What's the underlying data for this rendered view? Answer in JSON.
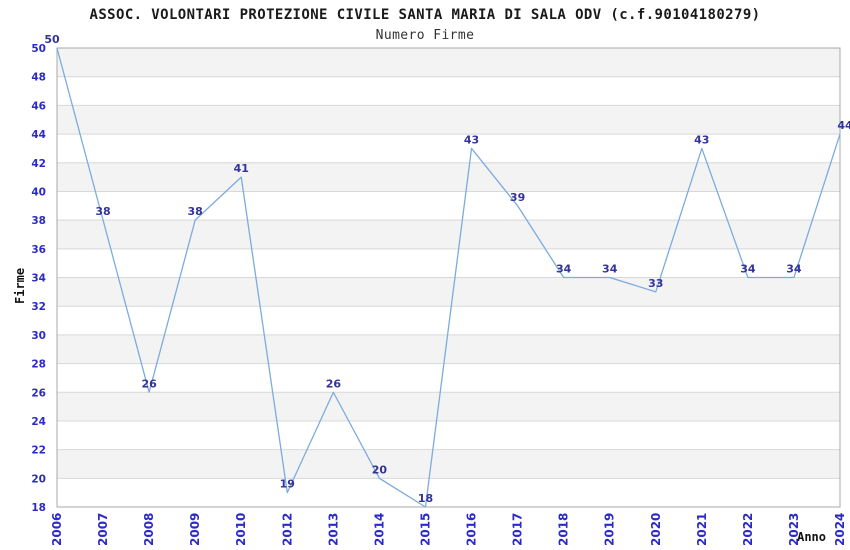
{
  "chart_data": {
    "type": "line",
    "title": "ASSOC. VOLONTARI PROTEZIONE CIVILE SANTA MARIA DI SALA ODV (c.f.90104180279)",
    "subtitle": "Numero Firme",
    "xlabel": "Anno",
    "ylabel": "Firme",
    "categories": [
      "2006",
      "2007",
      "2008",
      "2009",
      "2010",
      "2012",
      "2013",
      "2014",
      "2015",
      "2016",
      "2017",
      "2018",
      "2019",
      "2020",
      "2021",
      "2022",
      "2023",
      "2024"
    ],
    "values": [
      50,
      38,
      26,
      38,
      41,
      19,
      26,
      20,
      18,
      43,
      39,
      34,
      34,
      33,
      43,
      34,
      34,
      44
    ],
    "ylim": [
      18,
      50
    ],
    "ytick_step": 2,
    "grid": "horizontal-banded",
    "legend": "none",
    "colors": {
      "line": "#7cabdf",
      "point_label": "#333399",
      "tick_label": "#2a2ac8",
      "band": "#f3f3f3",
      "gridline": "#d8d8d8",
      "border": "#a8a8a8",
      "axis_title": "#111111"
    }
  }
}
